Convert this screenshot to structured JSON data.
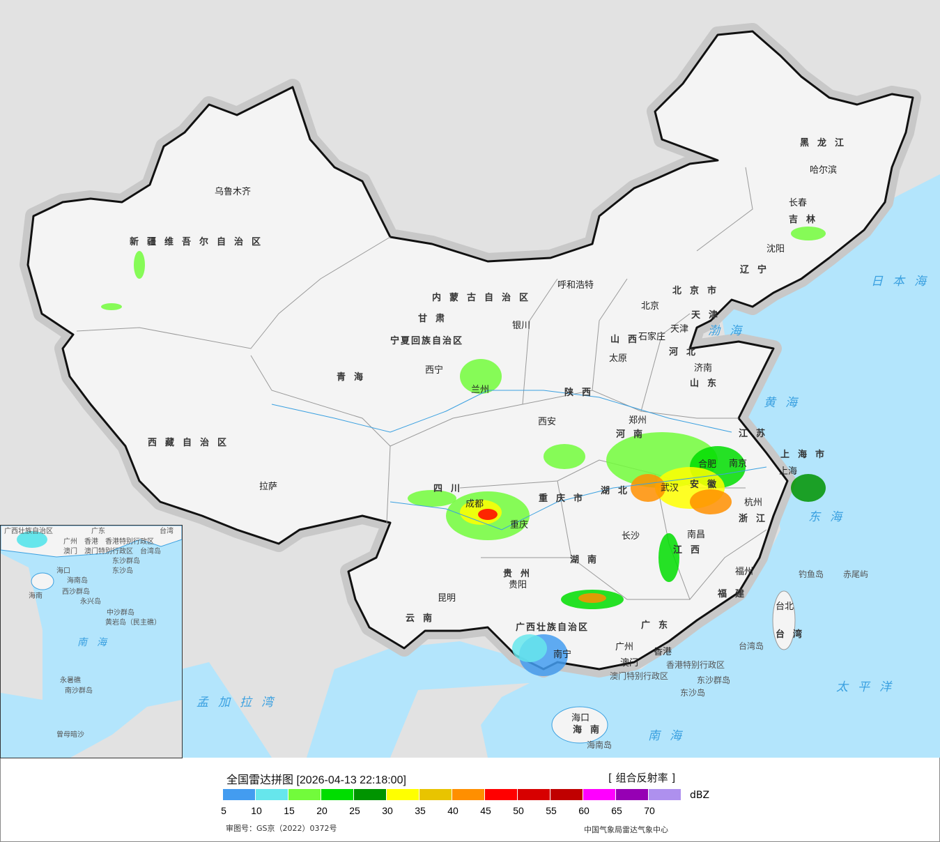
{
  "legend": {
    "title": "全国雷达拼图 [2026-04-13 22:18:00]",
    "product": "[ 组合反射率 ]",
    "unit": "dBZ",
    "colors": [
      "#439cf0",
      "#66e6ec",
      "#72fb3b",
      "#00dd00",
      "#009400",
      "#ffff00",
      "#e8c400",
      "#ff8f00",
      "#ff0000",
      "#d70000",
      "#c00000",
      "#ff00ff",
      "#9600b4",
      "#ae90ee"
    ],
    "ticks": [
      "5",
      "10",
      "15",
      "20",
      "25",
      "30",
      "35",
      "40",
      "45",
      "50",
      "55",
      "60",
      "65",
      "70"
    ],
    "approval": "审图号：GS京（2022）0372号",
    "agency": "中国气象局雷达气象中心"
  },
  "map": {
    "provinces": [
      "新疆维吾尔自治区",
      "西藏自治区",
      "青海",
      "甘肃",
      "内蒙古自治区",
      "黑龙江",
      "吉林",
      "辽宁",
      "河北",
      "山西",
      "陕西",
      "四川",
      "云南",
      "贵州",
      "湖南",
      "湖北",
      "河南",
      "山东",
      "江苏",
      "安徽",
      "浙江",
      "江西",
      "福建",
      "广东",
      "广西壮族自治区",
      "海南",
      "重庆市",
      "上海市",
      "台湾",
      "宁夏回族自治区",
      "北京市",
      "天津"
    ],
    "cities": [
      "乌鲁木齐",
      "拉萨",
      "西宁",
      "兰州",
      "银川",
      "呼和浩特",
      "北京",
      "天津",
      "石家庄",
      "太原",
      "济南",
      "郑州",
      "西安",
      "成都",
      "重庆",
      "贵阳",
      "昆明",
      "长沙",
      "武汉",
      "南昌",
      "合肥",
      "南京",
      "上海",
      "杭州",
      "福州",
      "台北",
      "广州",
      "香港",
      "澳门",
      "南宁",
      "海口",
      "哈尔滨",
      "长春",
      "沈阳"
    ],
    "seas": [
      "渤海",
      "黄海",
      "东海",
      "日本海",
      "太平洋",
      "南海",
      "孟加拉湾"
    ],
    "islands": [
      "钓鱼岛",
      "赤尾屿",
      "台湾岛",
      "东沙群岛",
      "东沙岛",
      "海南岛",
      "香港特别行政区",
      "澳门特别行政区"
    ]
  },
  "inset": {
    "labels": [
      "广西壮族自治区",
      "广东",
      "台湾",
      "广州",
      "澳门",
      "香港",
      "香港特别行政区",
      "澳门特别行政区",
      "台湾岛",
      "东沙群岛",
      "东沙岛",
      "海口",
      "海南",
      "海南岛",
      "西沙群岛",
      "永兴岛",
      "中沙群岛",
      "黄岩岛（民主礁）",
      "南海",
      "永暑礁",
      "南沙群岛",
      "曾母暗沙"
    ]
  }
}
